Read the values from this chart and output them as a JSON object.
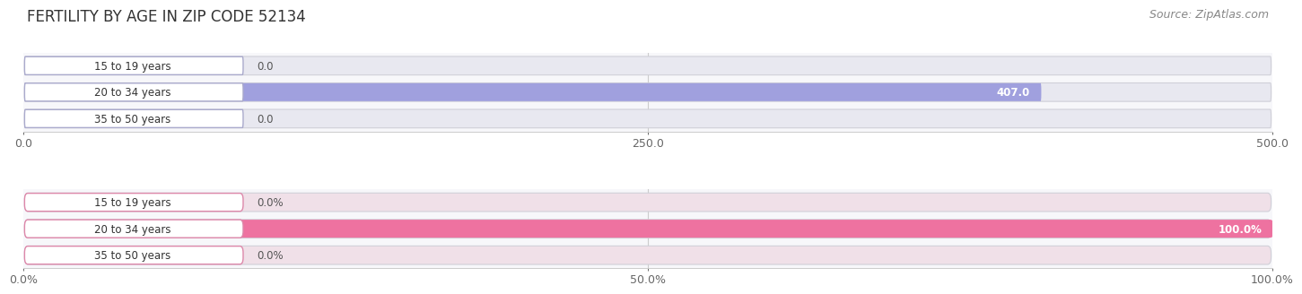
{
  "title": "FERTILITY BY AGE IN ZIP CODE 52134",
  "source": "Source: ZipAtlas.com",
  "top_chart": {
    "categories": [
      "15 to 19 years",
      "20 to 34 years",
      "35 to 50 years"
    ],
    "values": [
      0.0,
      407.0,
      0.0
    ],
    "xlim": [
      0,
      500
    ],
    "xticks": [
      0.0,
      250.0,
      500.0
    ],
    "xtick_labels": [
      "0.0",
      "250.0",
      "500.0"
    ],
    "bar_color": "#9999dd",
    "bar_bg_color": "#e8e8f0",
    "pill_border_color": "#aaaacc",
    "bar_height": 0.7
  },
  "bottom_chart": {
    "categories": [
      "15 to 19 years",
      "20 to 34 years",
      "35 to 50 years"
    ],
    "values": [
      0.0,
      100.0,
      0.0
    ],
    "xlim": [
      0,
      100
    ],
    "xticks": [
      0.0,
      50.0,
      100.0
    ],
    "xtick_labels": [
      "0.0%",
      "50.0%",
      "100.0%"
    ],
    "bar_color": "#ee6699",
    "bar_bg_color": "#f0e0e8",
    "pill_border_color": "#dd88aa",
    "bar_height": 0.7
  },
  "fig_bg_color": "#ffffff",
  "title_fontsize": 12,
  "source_fontsize": 9,
  "tick_fontsize": 9,
  "value_fontsize": 8.5,
  "category_fontsize": 8.5
}
